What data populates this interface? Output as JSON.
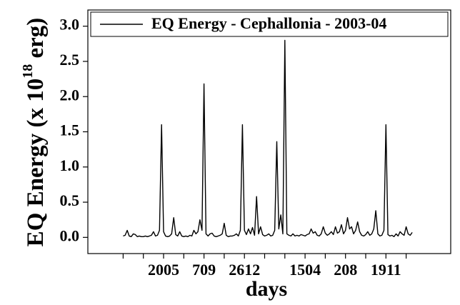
{
  "chart_data": {
    "type": "line",
    "x_label": "days",
    "y_label": [
      "EQ Energy (x 10",
      "18",
      " erg)"
    ],
    "categories": [
      null,
      null,
      null,
      null,
      null,
      null,
      null,
      null,
      null,
      null,
      null,
      null,
      null,
      null,
      null,
      null,
      null,
      null,
      null,
      null,
      "2005",
      null,
      null,
      null,
      null,
      null,
      null,
      null,
      null,
      null,
      null,
      null,
      null,
      null,
      null,
      null,
      null,
      null,
      null,
      null,
      "709",
      null,
      null,
      null,
      null,
      null,
      null,
      null,
      null,
      null,
      null,
      null,
      null,
      null,
      null,
      null,
      null,
      null,
      null,
      null,
      "2612",
      null,
      null,
      null,
      null,
      null,
      null,
      null,
      null,
      null,
      null,
      null,
      null,
      null,
      null,
      null,
      null,
      null,
      null,
      null,
      null,
      null,
      null,
      null,
      null,
      null,
      null,
      null,
      null,
      null,
      "1504",
      null,
      null,
      null,
      null,
      null,
      null,
      null,
      null,
      null,
      null,
      null,
      null,
      null,
      null,
      null,
      null,
      null,
      null,
      null,
      "208",
      null,
      null,
      null,
      null,
      null,
      null,
      null,
      null,
      null,
      null,
      null,
      null,
      null,
      null,
      null,
      null,
      null,
      null,
      null,
      "1911",
      null,
      null,
      null,
      null,
      null,
      null,
      null,
      null,
      null,
      null,
      null,
      null,
      null
    ],
    "series": [
      {
        "name": "EQ Energy - Cephallonia - 2003-04",
        "color": "#000000",
        "values": [
          0.02,
          0.03,
          0.1,
          0.02,
          0.01,
          0.05,
          0.04,
          0.01,
          0.02,
          0.01,
          0.01,
          0.02,
          0.01,
          0.02,
          0.03,
          0.08,
          0.02,
          0.03,
          0.1,
          1.6,
          0.08,
          0.02,
          0.01,
          0.02,
          0.05,
          0.28,
          0.04,
          0.02,
          0.08,
          0.02,
          0.01,
          0.02,
          0.01,
          0.03,
          0.02,
          0.1,
          0.05,
          0.08,
          0.25,
          0.1,
          2.18,
          0.05,
          0.02,
          0.05,
          0.06,
          0.02,
          0.01,
          0.02,
          0.03,
          0.05,
          0.2,
          0.03,
          0.01,
          0.02,
          0.02,
          0.03,
          0.05,
          0.02,
          0.1,
          1.6,
          0.1,
          0.04,
          0.12,
          0.05,
          0.14,
          0.03,
          0.58,
          0.05,
          0.15,
          0.04,
          0.02,
          0.03,
          0.05,
          0.02,
          0.03,
          0.1,
          1.36,
          0.12,
          0.32,
          0.05,
          2.8,
          0.05,
          0.03,
          0.02,
          0.05,
          0.02,
          0.03,
          0.02,
          0.04,
          0.03,
          0.02,
          0.04,
          0.05,
          0.12,
          0.06,
          0.08,
          0.03,
          0.02,
          0.05,
          0.15,
          0.06,
          0.03,
          0.05,
          0.08,
          0.04,
          0.15,
          0.06,
          0.08,
          0.18,
          0.05,
          0.1,
          0.28,
          0.12,
          0.15,
          0.05,
          0.1,
          0.22,
          0.08,
          0.03,
          0.02,
          0.04,
          0.08,
          0.03,
          0.05,
          0.12,
          0.38,
          0.05,
          0.02,
          0.03,
          0.1,
          1.6,
          0.04,
          0.02,
          0.03,
          0.01,
          0.05,
          0.02,
          0.08,
          0.05,
          0.03,
          0.15,
          0.05,
          0.03,
          0.07
        ]
      }
    ],
    "ylim": [
      -0.23,
      3.23
    ],
    "yticks": [
      {
        "value": 0,
        "label": "0.0"
      },
      0.5,
      {
        "value": 1,
        "label": "1.0"
      },
      1.5,
      {
        "value": 2,
        "label": "2.0"
      },
      2.5,
      {
        "value": 3,
        "label": "3.0"
      }
    ],
    "legend": "top"
  }
}
